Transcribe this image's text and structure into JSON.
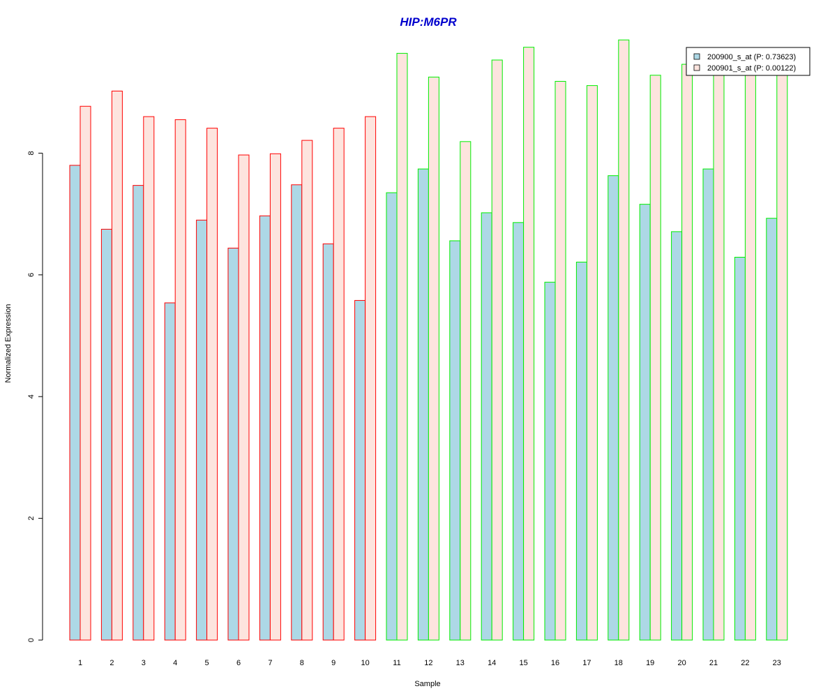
{
  "chart_data": {
    "type": "bar",
    "title": "HIP:M6PR",
    "xlabel": "Sample",
    "ylabel": "Normalized Expression",
    "categories": [
      "1",
      "2",
      "3",
      "4",
      "5",
      "6",
      "7",
      "8",
      "9",
      "10",
      "11",
      "12",
      "13",
      "14",
      "15",
      "16",
      "17",
      "18",
      "19",
      "20",
      "21",
      "22",
      "23"
    ],
    "series": [
      {
        "name": "200900_s_at (P: 0.73623)",
        "fill": "#add8e6",
        "values": [
          7.8,
          6.75,
          7.47,
          5.54,
          6.9,
          6.44,
          6.97,
          7.48,
          6.51,
          5.58,
          7.35,
          7.74,
          6.56,
          7.02,
          6.86,
          5.88,
          6.21,
          7.63,
          7.16,
          6.71,
          7.74,
          6.29,
          6.93
        ]
      },
      {
        "name": "200901_s_at (P: 0.00122)",
        "fill": "#fde4de",
        "values": [
          8.77,
          9.02,
          8.6,
          8.55,
          8.41,
          7.97,
          7.99,
          8.21,
          8.41,
          8.6,
          9.64,
          9.25,
          8.19,
          9.53,
          9.74,
          9.18,
          9.11,
          9.86,
          9.28,
          9.46,
          9.32,
          9.32,
          9.32
        ]
      }
    ],
    "groups": [
      {
        "samples": [
          1,
          10
        ],
        "border_color": "#ff0000"
      },
      {
        "samples": [
          11,
          23
        ],
        "border_color": "#00ee00"
      }
    ],
    "ylim": [
      0,
      10
    ],
    "yticks": [
      0,
      2,
      4,
      6,
      8
    ],
    "grid": false,
    "legend_position": "top-right",
    "title_color": "#0000cd"
  }
}
